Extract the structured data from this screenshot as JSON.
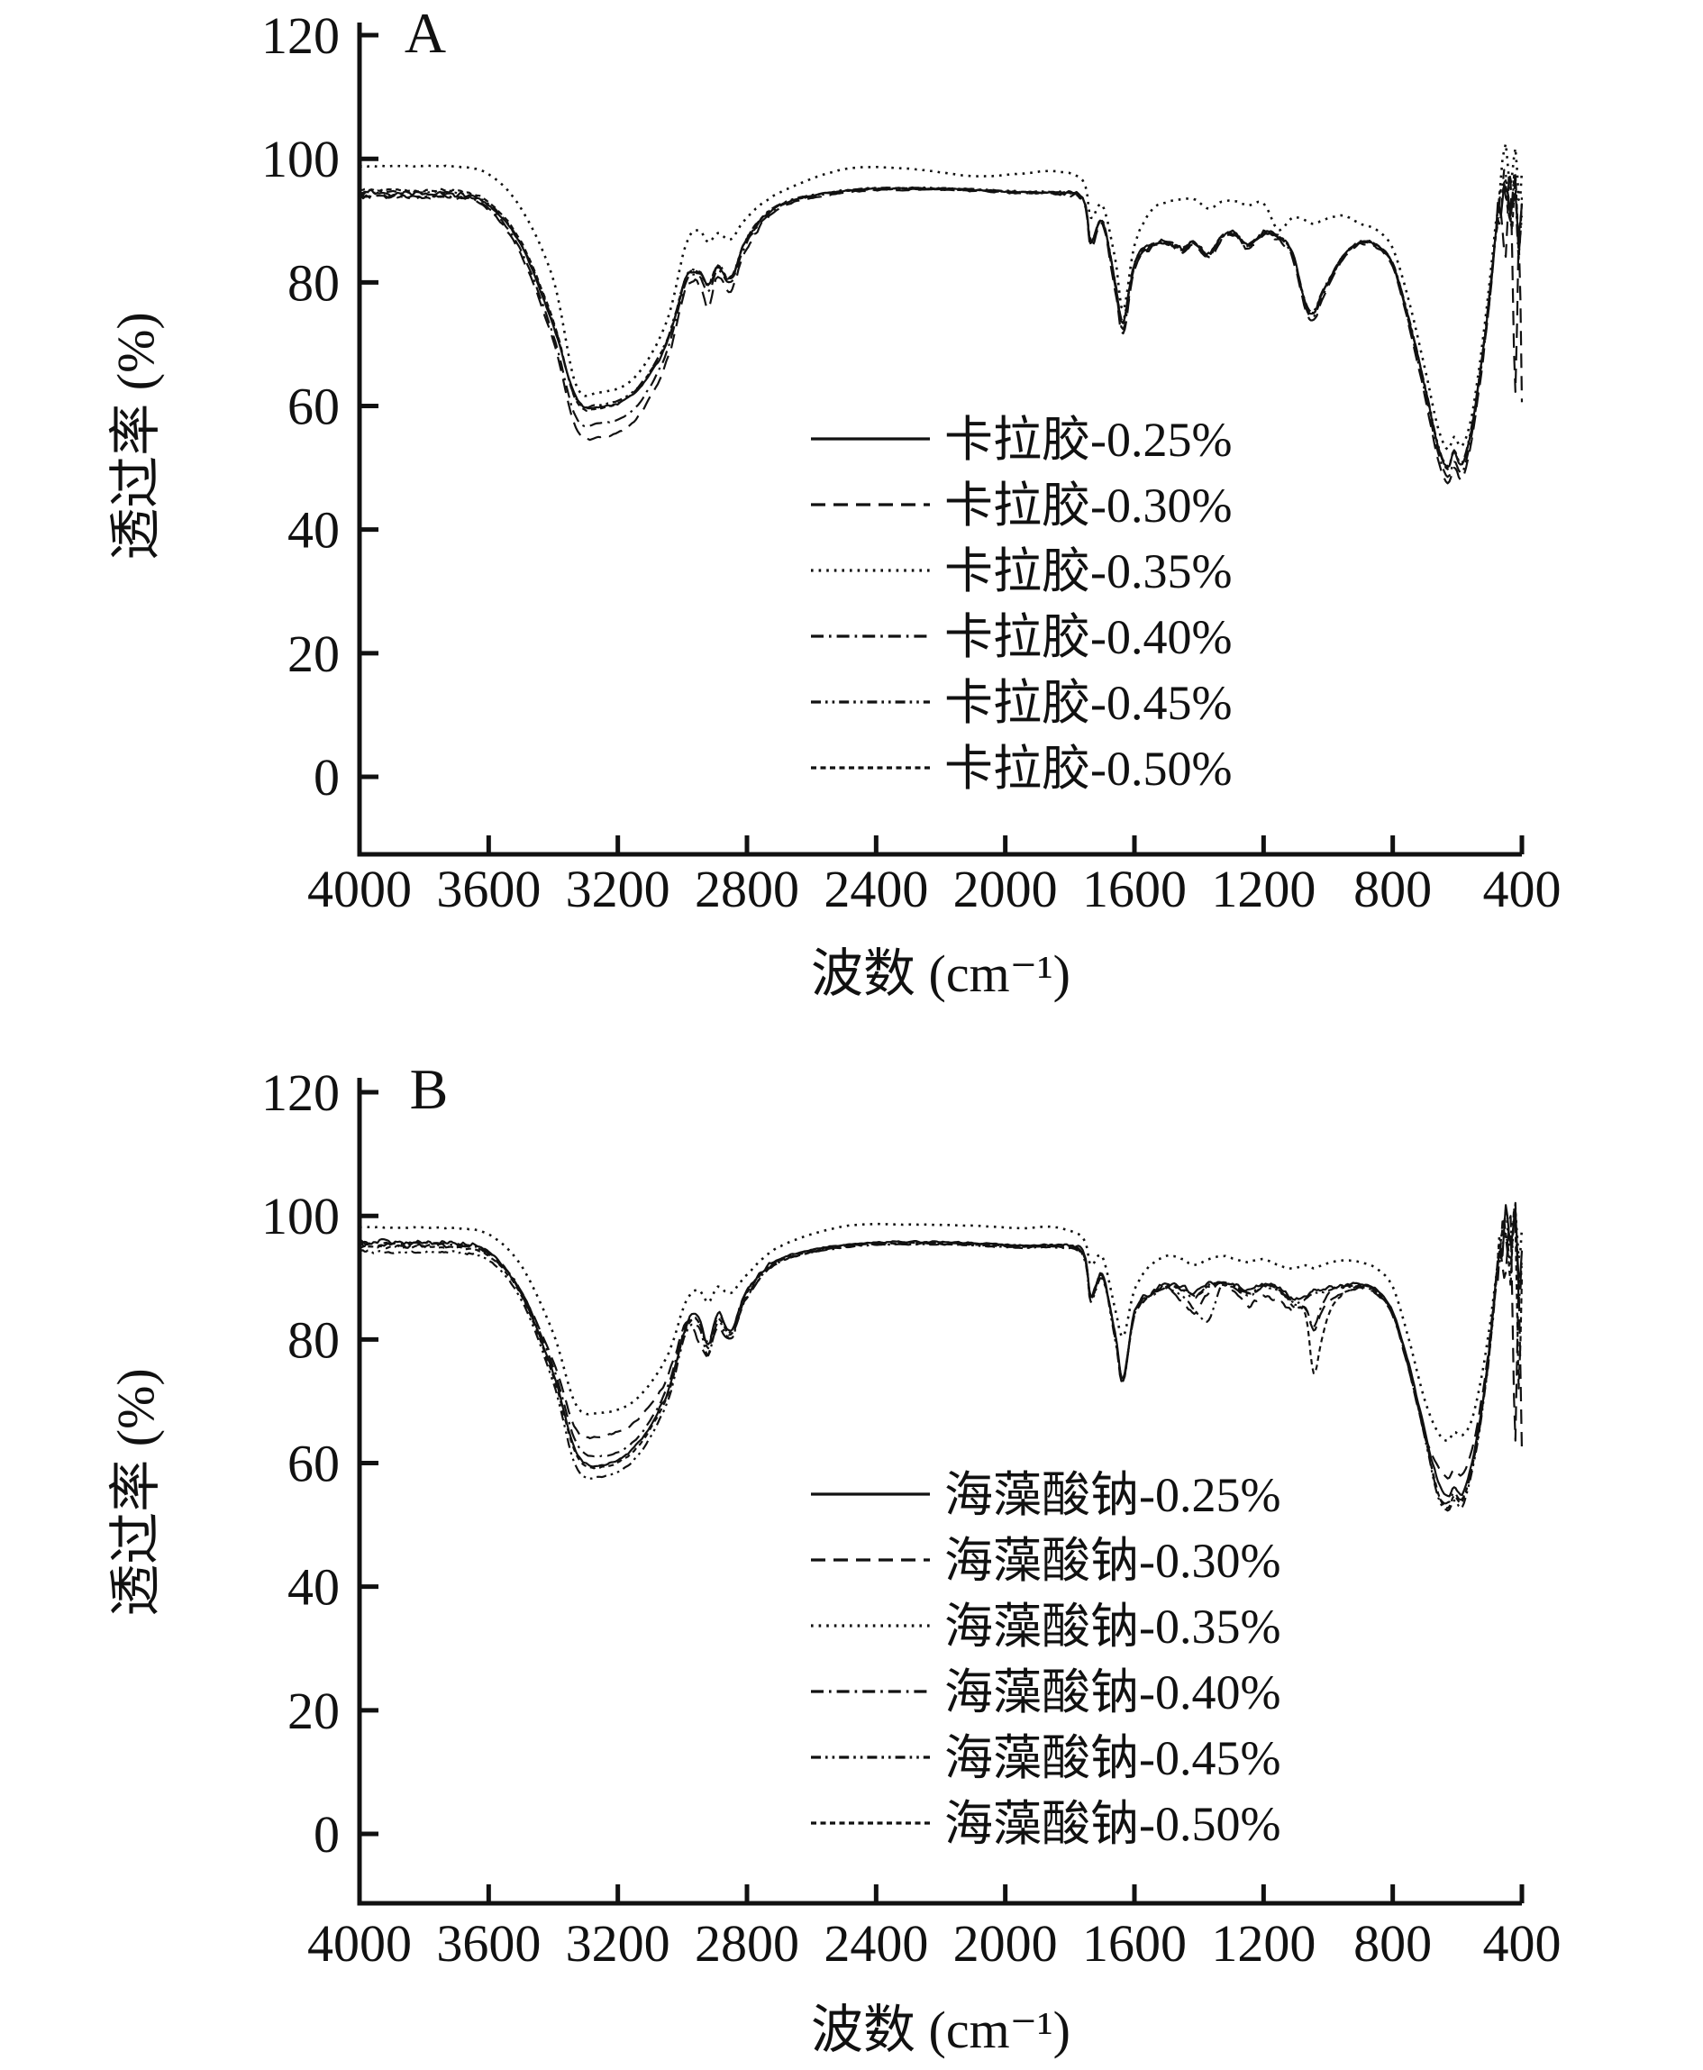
{
  "figure": {
    "background": "#ffffff",
    "ink_color": "#111111",
    "panel_letters": [
      "A",
      "B"
    ]
  },
  "chart_data": [
    {
      "type": "line",
      "panel_label": "A",
      "xlabel": "波数 (cm⁻¹)",
      "ylabel": "透过率 (%)",
      "xlim": [
        4000,
        400
      ],
      "ylim": [
        0,
        120
      ],
      "x_axis_reversed": true,
      "grid": false,
      "legend_position": "inside-right-middle",
      "x_ticks": [
        4000,
        3600,
        3200,
        2800,
        2400,
        2000,
        1600,
        1200,
        800,
        400
      ],
      "y_ticks": [
        120,
        100,
        80,
        60,
        40,
        20,
        0
      ],
      "x": [
        4000,
        3850,
        3700,
        3600,
        3500,
        3400,
        3330,
        3260,
        3150,
        3050,
        2990,
        2950,
        2920,
        2890,
        2850,
        2800,
        2700,
        2500,
        2300,
        2100,
        1950,
        1850,
        1760,
        1735,
        1700,
        1660,
        1635,
        1600,
        1550,
        1500,
        1450,
        1415,
        1370,
        1330,
        1290,
        1250,
        1200,
        1155,
        1110,
        1070,
        1045,
        1020,
        990,
        950,
        900,
        850,
        800,
        750,
        700,
        660,
        630,
        610,
        585,
        555,
        525,
        500,
        480,
        465,
        450,
        435,
        420,
        410,
        400
      ],
      "series": [
        {
          "name": "卡拉胶-0.25%",
          "line_style": "solid",
          "values": [
            94.5,
            94.4,
            94.3,
            92.5,
            86.0,
            73.0,
            61.5,
            59.8,
            62.0,
            70.0,
            80.5,
            81.5,
            79.5,
            82.5,
            80.5,
            87.0,
            92.5,
            94.8,
            95.2,
            95.0,
            94.6,
            94.5,
            93.5,
            86.5,
            90.0,
            80.0,
            73.5,
            83.0,
            86.0,
            86.5,
            85.5,
            86.5,
            84.5,
            87.5,
            88.0,
            86.0,
            88.0,
            87.5,
            84.5,
            76.5,
            75.0,
            78.0,
            81.0,
            84.5,
            86.5,
            86.0,
            83.0,
            74.0,
            63.0,
            53.5,
            50.0,
            52.5,
            50.5,
            56.5,
            67.0,
            78.0,
            88.0,
            94.0,
            96.0,
            90.0,
            97.0,
            85.0,
            93.0
          ]
        },
        {
          "name": "卡拉胶-0.30%",
          "line_style": "dashed",
          "values": [
            93.9,
            93.8,
            93.7,
            91.8,
            84.5,
            70.5,
            56.5,
            54.9,
            57.5,
            67.0,
            79.0,
            80.0,
            76.0,
            81.0,
            78.5,
            85.5,
            92.0,
            94.5,
            95.0,
            94.8,
            94.4,
            94.3,
            93.2,
            85.5,
            89.5,
            79.0,
            71.8,
            82.0,
            85.5,
            86.0,
            85.0,
            86.0,
            84.0,
            87.0,
            87.6,
            85.5,
            87.6,
            87.0,
            83.8,
            75.5,
            73.8,
            77.0,
            80.5,
            84.0,
            86.2,
            85.6,
            82.5,
            73.0,
            61.5,
            51.5,
            47.5,
            50.0,
            48.2,
            54.5,
            65.5,
            77.0,
            87.5,
            92.0,
            85.0,
            95.0,
            62.0,
            88.0,
            60.0
          ]
        },
        {
          "name": "卡拉胶-0.35%",
          "line_style": "dotted",
          "values": [
            98.8,
            98.8,
            98.7,
            97.5,
            92.0,
            80.5,
            63.5,
            62.2,
            64.5,
            73.5,
            86.0,
            88.5,
            86.5,
            88.0,
            87.0,
            90.5,
            94.5,
            98.3,
            98.4,
            97.2,
            97.6,
            98.0,
            96.5,
            90.5,
            92.5,
            84.0,
            75.5,
            86.0,
            91.5,
            93.0,
            93.5,
            93.5,
            92.0,
            93.0,
            93.2,
            92.5,
            92.8,
            88.5,
            90.5,
            90.0,
            89.5,
            90.0,
            90.5,
            90.8,
            89.5,
            88.5,
            85.5,
            77.0,
            66.0,
            56.5,
            53.0,
            55.0,
            53.5,
            58.5,
            69.0,
            80.0,
            90.0,
            97.0,
            100.0,
            96.0,
            103.0,
            92.0,
            98.0
          ]
        },
        {
          "name": "卡拉胶-0.40%",
          "line_style": "dash-dot",
          "values": [
            94.0,
            93.9,
            93.8,
            92.0,
            85.2,
            71.5,
            58.2,
            57.2,
            59.5,
            68.5,
            80.0,
            81.0,
            78.5,
            82.0,
            80.0,
            86.5,
            92.3,
            94.7,
            95.1,
            94.9,
            94.5,
            94.4,
            93.4,
            86.0,
            89.8,
            79.5,
            72.5,
            82.5,
            85.8,
            86.3,
            85.3,
            86.3,
            84.3,
            87.3,
            87.8,
            85.8,
            87.8,
            87.3,
            84.2,
            76.0,
            74.5,
            77.5,
            80.8,
            84.3,
            86.4,
            85.8,
            82.8,
            73.5,
            62.2,
            52.5,
            48.5,
            51.0,
            49.3,
            55.5,
            66.2,
            77.5,
            87.8,
            93.0,
            95.0,
            88.0,
            96.0,
            82.0,
            91.0
          ]
        },
        {
          "name": "卡拉胶-0.45%",
          "line_style": "dash-dot-dot",
          "values": [
            94.6,
            94.5,
            94.4,
            92.7,
            86.3,
            73.5,
            61.2,
            60.2,
            62.4,
            70.4,
            80.8,
            81.8,
            79.8,
            82.8,
            80.8,
            87.2,
            92.6,
            94.9,
            95.3,
            95.1,
            94.7,
            94.6,
            93.6,
            86.7,
            90.1,
            80.3,
            73.8,
            83.2,
            86.1,
            86.6,
            85.6,
            86.6,
            84.6,
            87.6,
            88.1,
            86.1,
            88.1,
            87.6,
            84.6,
            76.8,
            75.3,
            78.3,
            81.2,
            84.6,
            86.6,
            86.1,
            83.1,
            74.2,
            63.3,
            53.8,
            50.3,
            52.8,
            50.8,
            56.8,
            67.3,
            78.3,
            88.2,
            94.5,
            97.0,
            91.0,
            98.0,
            86.0,
            94.0
          ]
        },
        {
          "name": "卡拉胶-0.50%",
          "line_style": "short-dash",
          "values": [
            95.0,
            94.9,
            94.8,
            93.0,
            86.6,
            73.8,
            61.0,
            59.6,
            62.2,
            70.2,
            80.6,
            81.6,
            79.6,
            82.6,
            80.6,
            87.1,
            92.5,
            94.8,
            95.2,
            95.0,
            94.6,
            94.5,
            93.5,
            86.6,
            90.0,
            80.1,
            73.2,
            83.1,
            86.0,
            86.5,
            85.5,
            86.5,
            84.5,
            87.5,
            88.0,
            86.0,
            88.0,
            87.5,
            84.5,
            76.6,
            75.1,
            78.1,
            81.1,
            84.5,
            86.5,
            86.0,
            83.0,
            74.1,
            63.1,
            53.6,
            49.8,
            52.6,
            50.6,
            56.6,
            67.1,
            78.1,
            88.1,
            93.8,
            95.5,
            89.5,
            96.5,
            84.0,
            92.0
          ]
        }
      ]
    },
    {
      "type": "line",
      "panel_label": "B",
      "xlabel": "波数 (cm⁻¹)",
      "ylabel": "透过率 (%)",
      "xlim": [
        4000,
        400
      ],
      "ylim": [
        0,
        120
      ],
      "x_axis_reversed": true,
      "grid": false,
      "legend_position": "inside-right-middle",
      "x_ticks": [
        4000,
        3600,
        3200,
        2800,
        2400,
        2000,
        1600,
        1200,
        800,
        400
      ],
      "y_ticks": [
        120,
        100,
        80,
        60,
        40,
        20,
        0
      ],
      "x": [
        4000,
        3850,
        3700,
        3600,
        3500,
        3400,
        3330,
        3260,
        3150,
        3050,
        2990,
        2950,
        2920,
        2890,
        2850,
        2800,
        2700,
        2500,
        2300,
        2100,
        1950,
        1850,
        1760,
        1735,
        1700,
        1660,
        1635,
        1600,
        1550,
        1500,
        1450,
        1415,
        1370,
        1330,
        1290,
        1250,
        1200,
        1155,
        1110,
        1070,
        1045,
        1020,
        990,
        950,
        900,
        850,
        800,
        750,
        700,
        660,
        630,
        610,
        585,
        555,
        525,
        500,
        480,
        465,
        450,
        435,
        420,
        410,
        400
      ],
      "series": [
        {
          "name": "海藻酸钠-0.25%",
          "line_style": "solid",
          "values": [
            95.8,
            95.7,
            95.6,
            94.2,
            87.5,
            74.5,
            62.0,
            59.6,
            62.5,
            71.0,
            82.0,
            84.0,
            79.0,
            84.5,
            81.5,
            88.0,
            93.0,
            95.3,
            95.8,
            95.6,
            95.2,
            95.3,
            94.2,
            87.0,
            90.5,
            81.0,
            73.8,
            84.5,
            87.5,
            89.0,
            88.5,
            87.5,
            89.0,
            89.3,
            89.0,
            88.0,
            89.0,
            88.5,
            86.5,
            87.0,
            88.0,
            88.0,
            88.5,
            88.8,
            89.0,
            88.0,
            84.5,
            76.0,
            65.0,
            57.0,
            54.5,
            56.0,
            55.0,
            60.0,
            68.5,
            79.0,
            90.0,
            97.0,
            99.0,
            93.0,
            102.0,
            88.0,
            96.0
          ]
        },
        {
          "name": "海藻酸钠-0.30%",
          "line_style": "dashed",
          "values": [
            95.3,
            95.2,
            95.1,
            93.8,
            87.8,
            76.5,
            65.5,
            64.3,
            66.5,
            73.5,
            82.5,
            80.0,
            77.5,
            82.0,
            80.0,
            87.0,
            92.5,
            95.0,
            95.5,
            95.3,
            94.9,
            95.0,
            93.9,
            86.5,
            90.2,
            80.5,
            73.0,
            84.0,
            87.0,
            88.5,
            86.0,
            84.5,
            87.5,
            88.8,
            88.0,
            85.5,
            87.0,
            86.0,
            85.0,
            85.0,
            81.5,
            84.5,
            86.5,
            87.5,
            88.3,
            87.3,
            83.8,
            75.0,
            64.5,
            59.5,
            57.5,
            59.0,
            58.0,
            62.0,
            70.0,
            80.0,
            89.0,
            95.0,
            88.0,
            98.0,
            65.0,
            90.0,
            62.0
          ]
        },
        {
          "name": "海藻酸钠-0.35%",
          "line_style": "dotted",
          "values": [
            98.2,
            98.1,
            98.0,
            97.0,
            92.0,
            81.0,
            69.5,
            68.1,
            70.0,
            77.0,
            86.0,
            88.0,
            86.0,
            88.5,
            87.5,
            90.5,
            95.0,
            98.3,
            98.6,
            98.4,
            98.0,
            98.2,
            96.5,
            92.0,
            93.5,
            85.0,
            80.5,
            88.0,
            92.0,
            93.5,
            93.0,
            92.0,
            93.0,
            93.5,
            93.0,
            92.5,
            93.0,
            92.0,
            91.5,
            92.0,
            91.5,
            92.0,
            92.5,
            92.8,
            92.5,
            91.5,
            88.5,
            80.0,
            70.0,
            65.0,
            63.6,
            65.0,
            64.5,
            67.0,
            74.0,
            82.0,
            90.0,
            96.0,
            100.0,
            96.0,
            103.0,
            92.0,
            98.0
          ]
        },
        {
          "name": "海藻酸钠-0.40%",
          "line_style": "dash-dot",
          "values": [
            95.6,
            95.5,
            95.4,
            94.0,
            87.9,
            75.5,
            63.5,
            61.1,
            63.5,
            71.8,
            82.2,
            83.0,
            79.5,
            84.0,
            81.2,
            87.8,
            92.9,
            95.2,
            95.7,
            95.5,
            95.1,
            95.2,
            94.1,
            86.8,
            90.4,
            80.8,
            73.5,
            84.3,
            87.3,
            88.8,
            88.0,
            86.8,
            88.8,
            89.1,
            88.8,
            87.5,
            88.8,
            88.0,
            86.0,
            85.0,
            82.0,
            85.5,
            88.0,
            88.5,
            88.8,
            87.8,
            84.2,
            75.5,
            64.5,
            55.0,
            53.5,
            55.2,
            54.2,
            59.0,
            68.0,
            78.5,
            89.5,
            96.0,
            97.5,
            91.5,
            100.5,
            86.0,
            94.0
          ]
        },
        {
          "name": "海藻酸钠-0.45%",
          "line_style": "dash-dot-dot",
          "values": [
            94.2,
            94.1,
            94.0,
            92.8,
            86.5,
            73.0,
            59.5,
            57.7,
            60.5,
            69.5,
            81.0,
            82.0,
            77.5,
            83.0,
            80.0,
            87.0,
            92.5,
            94.9,
            95.4,
            95.2,
            94.8,
            94.9,
            93.8,
            86.2,
            90.0,
            80.2,
            73.2,
            84.0,
            87.0,
            88.3,
            87.0,
            84.8,
            83.0,
            88.9,
            88.5,
            87.0,
            88.5,
            88.0,
            86.0,
            86.5,
            87.5,
            87.6,
            88.1,
            88.4,
            88.6,
            87.6,
            84.0,
            75.2,
            64.0,
            54.5,
            52.3,
            54.0,
            53.0,
            58.5,
            67.5,
            78.0,
            89.0,
            95.5,
            97.0,
            90.5,
            100.0,
            85.0,
            93.0
          ]
        },
        {
          "name": "海藻酸钠-0.50%",
          "line_style": "short-dash",
          "values": [
            95.0,
            94.9,
            94.8,
            93.5,
            87.2,
            74.0,
            61.5,
            59.3,
            62.0,
            70.5,
            81.5,
            83.0,
            78.5,
            83.5,
            80.8,
            87.5,
            92.7,
            95.1,
            95.6,
            95.4,
            95.0,
            95.1,
            94.0,
            86.9,
            90.3,
            80.9,
            73.6,
            84.2,
            87.2,
            88.6,
            88.2,
            87.0,
            88.6,
            89.0,
            88.6,
            87.2,
            88.6,
            88.2,
            85.5,
            84.0,
            74.5,
            80.0,
            85.0,
            87.5,
            88.7,
            87.7,
            84.1,
            75.3,
            64.2,
            55.2,
            52.8,
            54.8,
            53.8,
            59.2,
            68.2,
            78.8,
            89.8,
            96.5,
            98.0,
            92.0,
            101.0,
            70.0,
            90.0
          ]
        }
      ]
    }
  ]
}
